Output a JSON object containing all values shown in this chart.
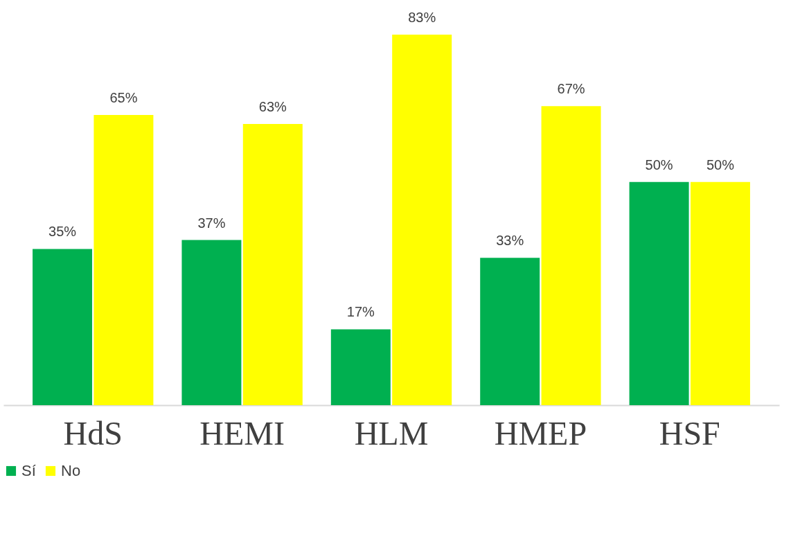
{
  "chart_data": {
    "type": "bar",
    "categories": [
      "HdS",
      "HEMI",
      "HLM",
      "HMEP",
      "HSF"
    ],
    "series": [
      {
        "name": "Sí",
        "color": "#00b050",
        "values": [
          35,
          37,
          17,
          33,
          50
        ],
        "value_labels": [
          "35%",
          "37%",
          "17%",
          "33%",
          "50%"
        ]
      },
      {
        "name": "No",
        "color": "#ffff00",
        "values": [
          65,
          63,
          83,
          67,
          50
        ],
        "value_labels": [
          "65%",
          "63%",
          "83%",
          "67%",
          "50%"
        ]
      }
    ],
    "legend": "bottom",
    "grid": false
  }
}
